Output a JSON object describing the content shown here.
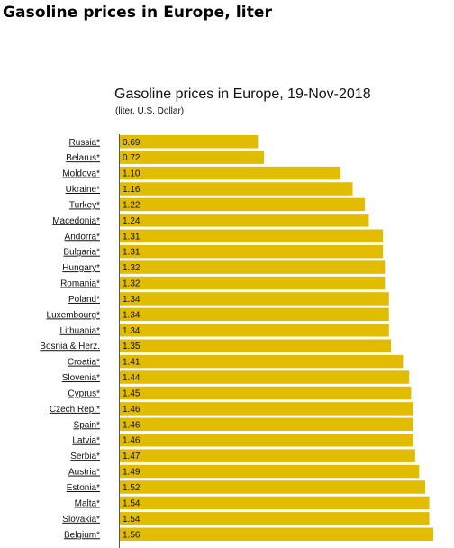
{
  "page": {
    "title": "Gasoline prices in Europe, liter"
  },
  "chart_data": {
    "type": "bar",
    "orientation": "horizontal",
    "title": "Gasoline prices in Europe, 19-Nov-2018",
    "subtitle": "(liter, U.S. Dollar)",
    "xlim": [
      0,
      1.56
    ],
    "grid": false,
    "bar_color": "#e2bc00",
    "categories": [
      "Russia*",
      "Belarus*",
      "Moldova*",
      "Ukraine*",
      "Turkey*",
      "Macedonia*",
      "Andorra*",
      "Bulgaria*",
      "Hungary*",
      "Romania*",
      "Poland*",
      "Luxembourg*",
      "Lithuania*",
      "Bosnia & Herz.",
      "Croatia*",
      "Slovenia*",
      "Cyprus*",
      "Czech Rep.*",
      "Spain*",
      "Latvia*",
      "Serbia*",
      "Austria*",
      "Estonia*",
      "Malta*",
      "Slovakia*",
      "Belgium*"
    ],
    "values": [
      0.69,
      0.72,
      1.1,
      1.16,
      1.22,
      1.24,
      1.31,
      1.31,
      1.32,
      1.32,
      1.34,
      1.34,
      1.34,
      1.35,
      1.41,
      1.44,
      1.45,
      1.46,
      1.46,
      1.46,
      1.47,
      1.49,
      1.52,
      1.54,
      1.54,
      1.56
    ],
    "value_labels": [
      "0.69",
      "0.72",
      "1.10",
      "1.16",
      "1.22",
      "1.24",
      "1.31",
      "1.31",
      "1.32",
      "1.32",
      "1.34",
      "1.34",
      "1.34",
      "1.35",
      "1.41",
      "1.44",
      "1.45",
      "1.46",
      "1.46",
      "1.46",
      "1.47",
      "1.49",
      "1.52",
      "1.54",
      "1.54",
      "1.56"
    ]
  }
}
